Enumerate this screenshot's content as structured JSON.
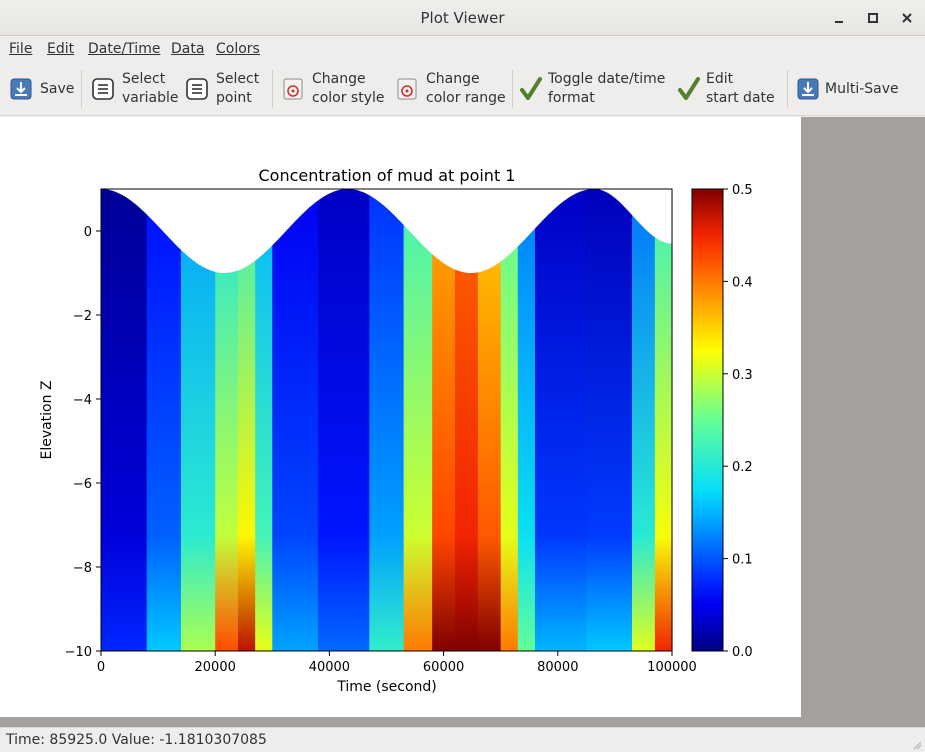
{
  "window": {
    "title": "Plot Viewer"
  },
  "menu": [
    {
      "label": "File"
    },
    {
      "label": "Edit"
    },
    {
      "label": "Date/Time"
    },
    {
      "label": "Data"
    },
    {
      "label": "Colors"
    }
  ],
  "toolbar": {
    "save": "Save",
    "select_variable": "Select\nvariable",
    "select_point": "Select\npoint",
    "change_color_style": "Change\ncolor style",
    "change_color_range": "Change\ncolor range",
    "toggle_datetime": "Toggle date/time\nformat",
    "edit_start_date": "Edit\nstart date",
    "multi_save": "Multi-Save"
  },
  "status": {
    "text": "Time: 85925.0   Value: -1.1810307085"
  },
  "colors": {
    "check_green": "#4e7a27",
    "accent_blue": "#3d6fb5"
  },
  "chart_data": {
    "type": "heatmap",
    "title": "Concentration of mud at point 1",
    "xlabel": "Time (second)",
    "ylabel": "Elevation Z",
    "xlim": [
      0,
      100000
    ],
    "ylim": [
      -10,
      1
    ],
    "xticks": [
      "0",
      "20000",
      "40000",
      "60000",
      "80000",
      "100000"
    ],
    "yticks": [
      "0",
      "−2",
      "−4",
      "−6",
      "−8",
      "−10"
    ],
    "colorbar": {
      "min": 0.0,
      "max": 0.5,
      "ticks": [
        "0.0",
        "0.1",
        "0.2",
        "0.3",
        "0.4",
        "0.5"
      ],
      "colormap": "jet"
    },
    "surface": {
      "x": [
        0,
        21600,
        43200,
        64800,
        86400,
        100000
      ],
      "z": [
        1,
        -1,
        1,
        -1,
        1,
        -0.3
      ]
    },
    "columns": [
      {
        "x": 0,
        "top": 0.0,
        "bottom": 0.05
      },
      {
        "x": 8000,
        "top": 0.02,
        "bottom": 0.1
      },
      {
        "x": 14000,
        "top": 0.1,
        "bottom": 0.22
      },
      {
        "x": 20000,
        "top": 0.18,
        "bottom": 0.35
      },
      {
        "x": 24000,
        "top": 0.2,
        "bottom": 0.5
      },
      {
        "x": 27000,
        "top": 0.22,
        "bottom": 0.45
      },
      {
        "x": 30000,
        "top": 0.08,
        "bottom": 0.18
      },
      {
        "x": 38000,
        "top": 0.02,
        "bottom": 0.1
      },
      {
        "x": 47000,
        "top": 0.04,
        "bottom": 0.12
      },
      {
        "x": 53000,
        "top": 0.12,
        "bottom": 0.3
      },
      {
        "x": 58000,
        "top": 0.32,
        "bottom": 0.5
      },
      {
        "x": 62000,
        "top": 0.42,
        "bottom": 0.5
      },
      {
        "x": 66000,
        "top": 0.4,
        "bottom": 0.5
      },
      {
        "x": 70000,
        "top": 0.3,
        "bottom": 0.5
      },
      {
        "x": 73000,
        "top": 0.18,
        "bottom": 0.3
      },
      {
        "x": 76000,
        "top": 0.06,
        "bottom": 0.2
      },
      {
        "x": 85000,
        "top": 0.0,
        "bottom": 0.1
      },
      {
        "x": 93000,
        "top": 0.05,
        "bottom": 0.22
      },
      {
        "x": 97000,
        "top": 0.18,
        "bottom": 0.4
      },
      {
        "x": 100000,
        "top": 0.25,
        "bottom": 0.5
      }
    ]
  }
}
